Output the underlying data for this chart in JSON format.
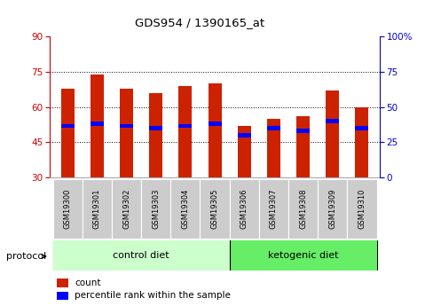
{
  "title": "GDS954 / 1390165_at",
  "samples": [
    "GSM19300",
    "GSM19301",
    "GSM19302",
    "GSM19303",
    "GSM19304",
    "GSM19305",
    "GSM19306",
    "GSM19307",
    "GSM19308",
    "GSM19309",
    "GSM19310"
  ],
  "red_bar_tops": [
    68,
    74,
    68,
    66,
    69,
    70,
    52,
    55,
    56,
    67,
    60
  ],
  "blue_values": [
    52,
    53,
    52,
    51,
    52,
    53,
    48,
    51,
    50,
    54,
    51
  ],
  "bar_bottom": 30,
  "ylim_left": [
    30,
    90
  ],
  "ylim_right": [
    0,
    100
  ],
  "yticks_left": [
    30,
    45,
    60,
    75,
    90
  ],
  "yticks_right": [
    0,
    25,
    50,
    75,
    100
  ],
  "ytick_labels_right": [
    "0",
    "25",
    "50",
    "75",
    "100%"
  ],
  "left_axis_color": "#cc0000",
  "right_axis_color": "#0000cc",
  "protocol_label": "protocol",
  "ctrl_label": "control diet",
  "keto_label": "ketogenic diet",
  "ctrl_color": "#ccffcc",
  "keto_color": "#66ee66",
  "bar_color": "#cc2200",
  "blue_marker_color": "#0000ff",
  "tick_area_bg": "#cccccc",
  "legend_count_label": "count",
  "legend_percentile_label": "percentile rank within the sample",
  "blue_bar_height": 1.8,
  "bar_width": 0.45
}
